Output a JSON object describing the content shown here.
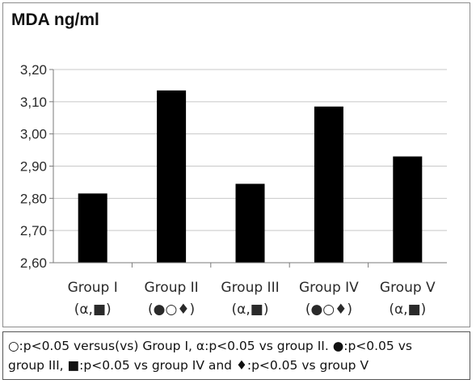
{
  "chart_data": {
    "type": "bar",
    "title": "MDA ng/ml",
    "categories": [
      "Group I",
      "Group II",
      "Group III",
      "Group IV",
      "Group V"
    ],
    "category_sublabels": [
      "(α,■)",
      "(●○♦)",
      "(α,■)",
      "(●○♦)",
      "(α,■)"
    ],
    "values": [
      2.815,
      3.135,
      2.845,
      3.085,
      2.93
    ],
    "ylim": [
      2.6,
      3.2
    ],
    "yticks": [
      "2,60",
      "2,70",
      "2,80",
      "2,90",
      "3,00",
      "3,10",
      "3,20"
    ],
    "grid": true,
    "bar_color": "#000000",
    "grid_color": "#c8c8c8"
  },
  "footnote": {
    "line1": "○:p<0.05 versus(vs) Group I, α:p<0.05 vs group II. ●:p<0.05 vs",
    "line2": "group III, ■:p<0.05 vs group IV and ♦:p<0.05 vs group V"
  }
}
